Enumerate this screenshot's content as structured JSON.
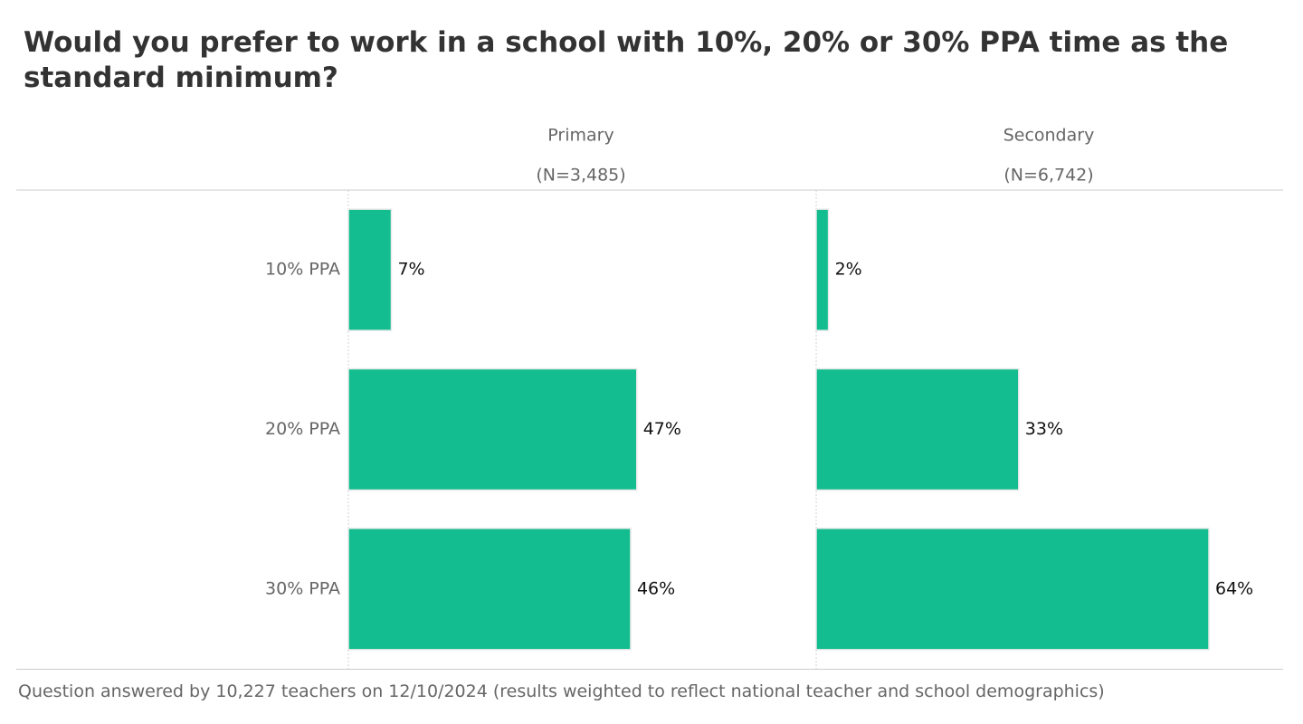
{
  "title": "Would you prefer to work in a school with 10%, 20% or 30% PPA time as the standard minimum?",
  "footer": "Question answered by 10,227 teachers on 12/10/2024 (results weighted to reflect national teacher and school demographics)",
  "colors": {
    "bar": "#13bd8f",
    "bar_border": "#ffffff",
    "text_dark": "#333333",
    "text_muted": "#666666",
    "rule": "#cccccc"
  },
  "chart_data": {
    "type": "bar",
    "orientation": "horizontal",
    "categories": [
      "10% PPA",
      "20% PPA",
      "30% PPA"
    ],
    "panels": [
      {
        "name": "Primary",
        "subtitle": "(N=3,485)",
        "values": [
          7,
          47,
          46
        ]
      },
      {
        "name": "Secondary",
        "subtitle": "(N=6,742)",
        "values": [
          2,
          33,
          64
        ]
      }
    ],
    "value_suffix": "%",
    "xlim": [
      0,
      75
    ],
    "grid": false,
    "legend": "none"
  }
}
